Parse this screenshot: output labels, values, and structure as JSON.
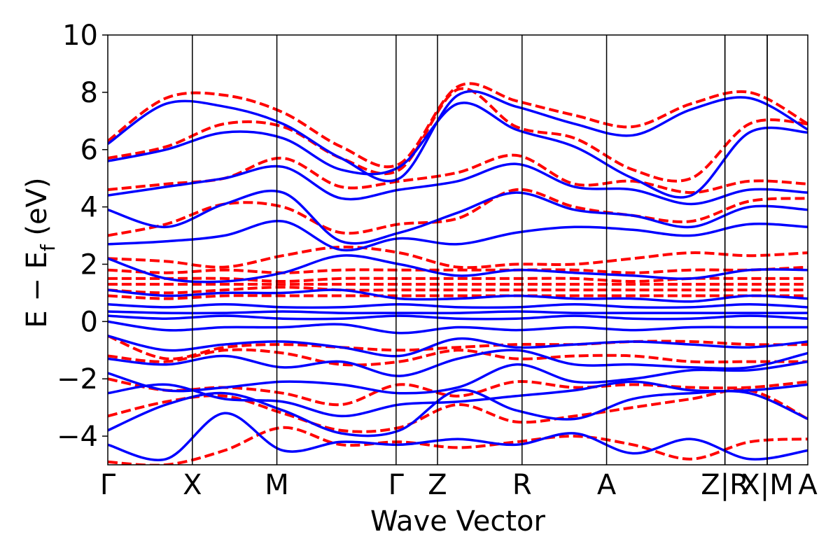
{
  "chart_data": {
    "type": "line",
    "title": "",
    "xlabel": "Wave Vector",
    "ylabel": "E − E_f (eV)",
    "ylabel_main": "E − E",
    "ylabel_sub": "f",
    "ylabel_unit": " (eV)",
    "ylim": [
      -5,
      10
    ],
    "yticks": [
      -4,
      -2,
      0,
      2,
      4,
      6,
      8,
      10
    ],
    "ytick_labels": [
      "−4",
      "−2",
      "0",
      "2",
      "4",
      "6",
      "8",
      "10"
    ],
    "grid": false,
    "xlim": [
      0,
      8.28
    ],
    "high_symmetry_points": [
      {
        "label": "Γ",
        "x": 0.0
      },
      {
        "label": "X",
        "x": 1.0
      },
      {
        "label": "M",
        "x": 2.0
      },
      {
        "label": "Γ",
        "x": 3.41
      },
      {
        "label": "Z",
        "x": 3.9
      },
      {
        "label": "R",
        "x": 4.9
      },
      {
        "label": "A",
        "x": 5.9
      },
      {
        "label": "Z|R",
        "x": 7.3
      },
      {
        "label": "X|M",
        "x": 7.8
      },
      {
        "label": "A",
        "x": 8.28
      }
    ],
    "segment_breaks": [
      7.3,
      7.8
    ],
    "series": [
      {
        "style": "solid",
        "color": "#0000ff",
        "bands": [
          [
            -4.3,
            -4.8,
            -3.2,
            -4.5,
            -4.2,
            -4.3,
            -4.1,
            -4.3,
            -3.9,
            -4.6,
            -4.1,
            -4.8,
            -4.5
          ],
          [
            -3.8,
            -2.9,
            -2.5,
            -3.1,
            -3.9,
            -3.8,
            -2.4,
            -3.1,
            -3.4,
            -2.7,
            -2.5,
            -2.5,
            -3.4
          ],
          [
            -2.5,
            -2.2,
            -2.7,
            -2.8,
            -3.3,
            -2.9,
            -2.8,
            -2.6,
            -2.4,
            -2.1,
            -2.4,
            -2.4,
            -2.2
          ],
          [
            -1.8,
            -2.4,
            -2.3,
            -2.1,
            -2.2,
            -2.5,
            -2.3,
            -1.5,
            -2.1,
            -2.0,
            -1.7,
            -1.7,
            -1.4
          ],
          [
            -1.3,
            -1.5,
            -1.2,
            -1.6,
            -1.4,
            -1.9,
            -1.3,
            -1.0,
            -1.5,
            -1.5,
            -1.6,
            -1.6,
            -1.1
          ],
          [
            -0.5,
            -1.0,
            -0.8,
            -0.7,
            -0.9,
            -1.2,
            -0.6,
            -0.9,
            -0.8,
            -0.7,
            -0.8,
            -0.9,
            -0.7
          ],
          [
            0.0,
            -0.3,
            -0.2,
            -0.2,
            -0.1,
            -0.4,
            -0.2,
            -0.3,
            -0.2,
            -0.3,
            -0.2,
            -0.2,
            -0.2
          ],
          [
            0.2,
            0.1,
            0.2,
            0.1,
            0.1,
            0.2,
            0.1,
            0.1,
            0.2,
            0.1,
            0.1,
            0.2,
            0.1
          ],
          [
            0.35,
            0.3,
            0.3,
            0.35,
            0.3,
            0.3,
            0.3,
            0.35,
            0.3,
            0.3,
            0.3,
            0.3,
            0.3
          ],
          [
            0.6,
            0.5,
            0.6,
            0.5,
            0.5,
            0.6,
            0.5,
            0.5,
            0.6,
            0.5,
            0.5,
            0.6,
            0.5
          ],
          [
            1.1,
            0.9,
            1.0,
            1.0,
            1.1,
            0.8,
            0.8,
            0.9,
            0.8,
            0.8,
            0.7,
            0.9,
            0.8
          ],
          [
            2.2,
            1.5,
            1.4,
            1.7,
            2.3,
            2.0,
            1.6,
            1.8,
            1.7,
            1.6,
            1.5,
            1.8,
            1.8
          ],
          [
            2.7,
            2.8,
            3.0,
            3.5,
            2.5,
            2.9,
            2.7,
            3.1,
            3.3,
            3.2,
            3.0,
            3.4,
            3.3
          ],
          [
            3.9,
            3.3,
            4.1,
            4.5,
            2.8,
            3.1,
            3.8,
            4.5,
            3.9,
            3.7,
            3.3,
            4.0,
            3.9
          ],
          [
            4.4,
            4.7,
            5.0,
            5.4,
            4.3,
            4.6,
            4.9,
            5.5,
            4.7,
            4.6,
            4.1,
            4.6,
            4.5
          ],
          [
            5.6,
            6.0,
            6.6,
            6.4,
            5.3,
            5.4,
            7.6,
            6.7,
            6.1,
            5.0,
            4.4,
            6.6,
            6.6
          ],
          [
            6.2,
            7.6,
            7.5,
            6.9,
            5.7,
            5.0,
            7.9,
            7.5,
            6.9,
            6.5,
            7.4,
            7.8,
            6.7
          ]
        ]
      },
      {
        "style": "dashed",
        "color": "#ff0000",
        "bands": [
          [
            -4.9,
            -5.0,
            -4.5,
            -3.7,
            -4.3,
            -4.2,
            -4.4,
            -4.2,
            -4.0,
            -4.3,
            -4.8,
            -4.2,
            -4.1
          ],
          [
            -3.3,
            -2.8,
            -2.6,
            -3.2,
            -3.8,
            -3.7,
            -2.9,
            -3.5,
            -3.3,
            -3.0,
            -2.7,
            -2.4,
            -3.4
          ],
          [
            -2.0,
            -2.4,
            -2.3,
            -2.5,
            -2.9,
            -2.2,
            -2.6,
            -2.1,
            -2.3,
            -2.2,
            -2.3,
            -2.3,
            -2.1
          ],
          [
            -1.2,
            -1.4,
            -1.0,
            -1.1,
            -1.5,
            -1.4,
            -1.0,
            -1.3,
            -1.2,
            -1.2,
            -1.4,
            -1.4,
            -1.4
          ],
          [
            -0.5,
            -1.3,
            -0.9,
            -0.8,
            -0.9,
            -1.0,
            -0.9,
            -0.8,
            -0.8,
            -0.7,
            -0.7,
            -0.8,
            -0.8
          ],
          [
            0.9,
            0.8,
            0.9,
            0.9,
            0.9,
            0.9,
            0.9,
            0.9,
            0.9,
            0.9,
            0.9,
            0.9,
            0.9
          ],
          [
            1.1,
            1.0,
            1.1,
            1.2,
            1.1,
            1.1,
            1.1,
            1.1,
            1.1,
            1.1,
            1.1,
            1.1,
            1.1
          ],
          [
            1.3,
            1.3,
            1.3,
            1.3,
            1.3,
            1.3,
            1.3,
            1.3,
            1.3,
            1.3,
            1.3,
            1.3,
            1.3
          ],
          [
            1.5,
            1.5,
            1.5,
            1.4,
            1.5,
            1.5,
            1.5,
            1.5,
            1.5,
            1.4,
            1.5,
            1.5,
            1.5
          ],
          [
            1.8,
            1.7,
            1.8,
            1.7,
            1.8,
            1.8,
            1.8,
            1.8,
            1.8,
            1.7,
            1.8,
            1.8,
            1.9
          ],
          [
            2.2,
            2.1,
            1.9,
            2.3,
            2.6,
            2.4,
            1.9,
            2.0,
            2.0,
            2.2,
            2.4,
            2.3,
            2.4
          ],
          [
            3.0,
            3.4,
            4.1,
            4.0,
            3.1,
            3.4,
            3.6,
            4.6,
            4.0,
            3.7,
            3.5,
            4.2,
            4.3
          ],
          [
            4.6,
            4.8,
            5.0,
            5.7,
            4.7,
            4.9,
            5.2,
            5.8,
            4.8,
            4.9,
            4.5,
            4.9,
            4.8
          ],
          [
            5.7,
            6.1,
            6.9,
            6.8,
            5.7,
            5.3,
            8.1,
            6.8,
            6.4,
            5.3,
            5.0,
            6.9,
            6.9
          ],
          [
            6.3,
            7.8,
            7.9,
            7.3,
            6.1,
            5.5,
            8.2,
            7.7,
            7.2,
            6.8,
            7.6,
            8.0,
            6.9
          ]
        ]
      }
    ]
  }
}
